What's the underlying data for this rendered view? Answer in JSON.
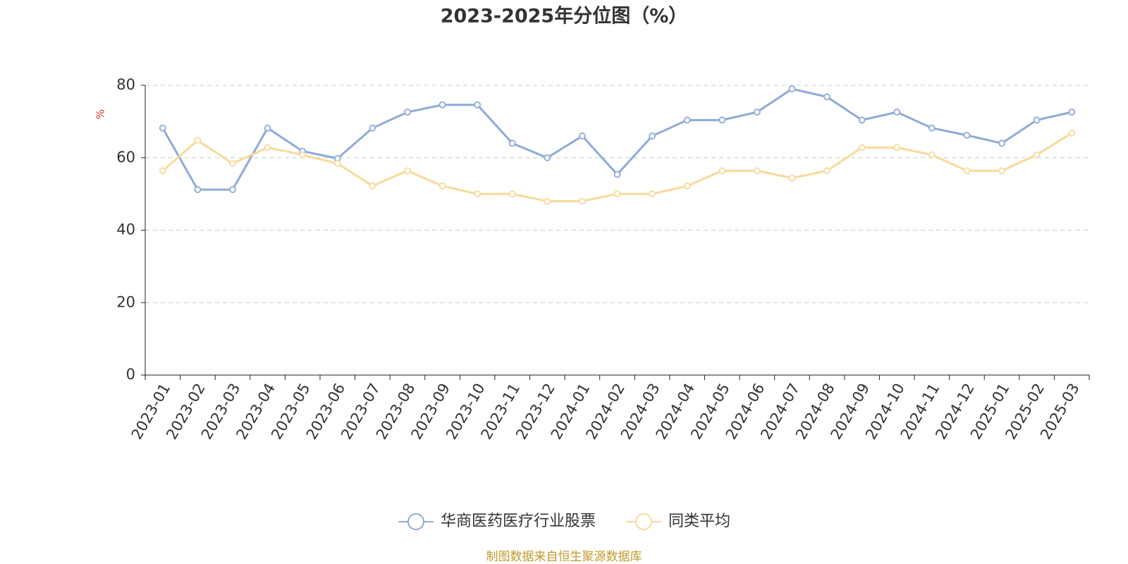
{
  "chart_data": {
    "type": "line",
    "title": "2023-2025年分位图（%）",
    "y_label": "%",
    "categories": [
      "2023-01",
      "2023-02",
      "2023-03",
      "2023-04",
      "2023-05",
      "2023-06",
      "2023-07",
      "2023-08",
      "2023-09",
      "2023-10",
      "2023-11",
      "2023-12",
      "2024-01",
      "2024-02",
      "2024-03",
      "2024-04",
      "2024-05",
      "2024-06",
      "2024-07",
      "2024-08",
      "2024-09",
      "2024-10",
      "2024-11",
      "2024-12",
      "2025-01",
      "2025-02",
      "2025-03"
    ],
    "series": [
      {
        "name": "华商医药医疗行业股票",
        "color": "#8eaad6",
        "values": [
          68.2,
          51.2,
          51.2,
          68.2,
          61.8,
          59.8,
          68.2,
          72.6,
          74.6,
          74.6,
          64,
          60,
          66,
          55.4,
          66,
          70.4,
          70.4,
          72.6,
          79,
          76.8,
          70.4,
          72.6,
          68.2,
          66.2,
          64,
          70.4,
          72.6
        ]
      },
      {
        "name": "同类平均",
        "color": "#f8d99a",
        "values": [
          56.4,
          64.8,
          58.4,
          62.8,
          60.8,
          58.4,
          52.2,
          56.4,
          52.2,
          50,
          50,
          48,
          48,
          50,
          50,
          52.2,
          56.4,
          56.4,
          54.4,
          56.4,
          62.8,
          62.8,
          60.8,
          56.4,
          56.4,
          60.8,
          66.8
        ]
      }
    ],
    "ylim": [
      0,
      80
    ],
    "yticks": [
      0,
      20,
      40,
      60,
      80
    ],
    "grid": true,
    "source": "制图数据来自恒生聚源数据库"
  }
}
